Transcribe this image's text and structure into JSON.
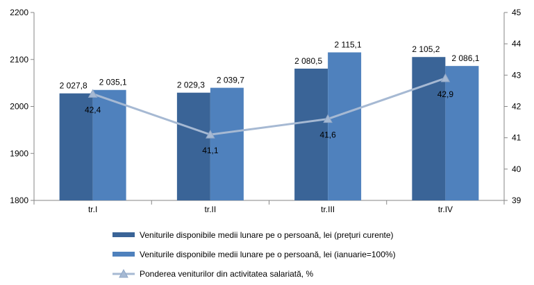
{
  "chart_data": {
    "type": "bar",
    "categories": [
      "tr.I",
      "tr.II",
      "tr.III",
      "tr.IV"
    ],
    "series": [
      {
        "name": "Veniturile disponibile medii lunare pe o persoană, lei (prețuri  curente)",
        "type": "bar",
        "axis": "left",
        "color": "#3A6497",
        "values": [
          2027.8,
          2029.3,
          2080.5,
          2105.2
        ],
        "labels": [
          "2 027,8",
          "2 029,3",
          "2 080,5",
          "2 105,2"
        ]
      },
      {
        "name": "Veniturile disponibile medii lunare pe o persoană, lei (ianuarie=100%)",
        "type": "bar",
        "axis": "left",
        "color": "#4F81BD",
        "values": [
          2035.1,
          2039.7,
          2115.1,
          2086.1
        ],
        "labels": [
          "2 035,1",
          "2 039,7",
          "2 115,1",
          "2 086,1"
        ]
      },
      {
        "name": "Ponderea veniturilor din activitatea salariată, %",
        "type": "line",
        "axis": "right",
        "color": "#A6B9D3",
        "marker": "triangle",
        "values": [
          42.4,
          41.1,
          41.6,
          42.9
        ],
        "labels": [
          "42,4",
          "41,1",
          "41,6",
          "42,9"
        ]
      }
    ],
    "y_left": {
      "min": 1800,
      "max": 2200,
      "ticks": [
        "1800",
        "1900",
        "2000",
        "2100",
        "2200"
      ]
    },
    "y_right": {
      "min": 39,
      "max": 45,
      "ticks": [
        "39",
        "40",
        "41",
        "42",
        "43",
        "44",
        "45"
      ]
    },
    "title": "",
    "xlabel": "",
    "ylabel": "",
    "grid": false,
    "legend": "bottom"
  }
}
